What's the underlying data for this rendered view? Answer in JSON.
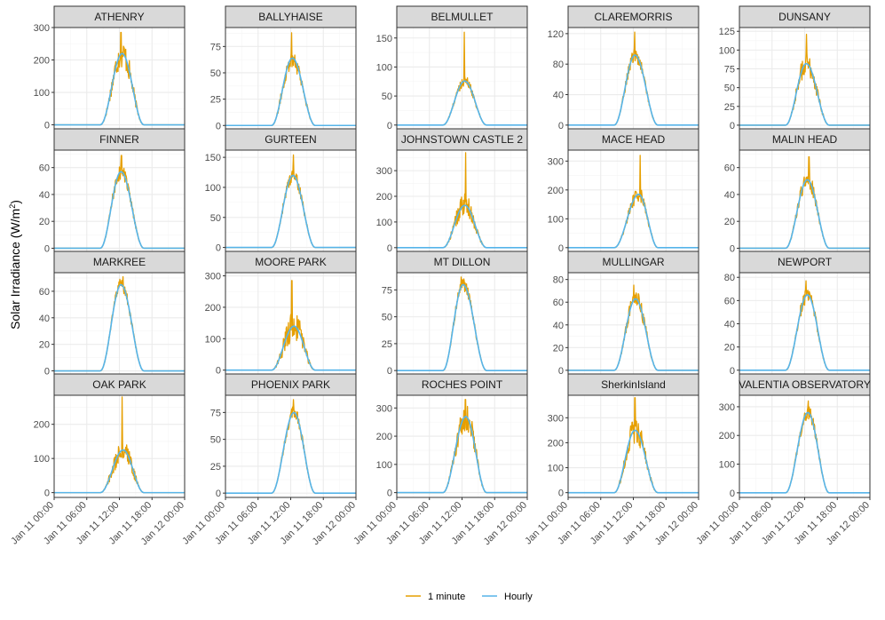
{
  "colors": {
    "minute": "#E69F00",
    "hourly": "#56B4E9",
    "strip_fill": "#D9D9D9",
    "grid_major": "#EBEBEB",
    "grid_minor": "#F5F5F5",
    "panel_border": "#333333"
  },
  "chart_data": {
    "type": "line",
    "ylabel": "Solar Irradiance (W/m²)",
    "ylabel_main": "Solar Irradiance (W/m",
    "ylabel_sup": "2",
    "ylabel_close": ")",
    "x_domain_hours": [
      0,
      24
    ],
    "x_ticks": [
      {
        "hour": 0,
        "label": "Jan 11 00:00"
      },
      {
        "hour": 6,
        "label": "Jan 11 06:00"
      },
      {
        "hour": 12,
        "label": "Jan 11 12:00"
      },
      {
        "hour": 18,
        "label": "Jan 11 18:00"
      },
      {
        "hour": 24,
        "label": "Jan 12 00:00"
      }
    ],
    "legend": [
      {
        "key": "minute",
        "label": "1 minute"
      },
      {
        "key": "hourly",
        "label": "Hourly"
      }
    ],
    "sunrise_hour": 8.5,
    "sunset_hour": 16.5,
    "panels": [
      {
        "name": "ATHENRY",
        "ylim": [
          -15,
          300
        ],
        "yticks": [
          0,
          100,
          200,
          300
        ],
        "peak_hour": 12.5,
        "hourly_peak": 220,
        "minute_peak": 285,
        "noise": 45
      },
      {
        "name": "BALLYHAISE",
        "ylim": [
          -4,
          93
        ],
        "yticks": [
          0,
          25,
          50,
          75
        ],
        "peak_hour": 12.3,
        "hourly_peak": 64,
        "minute_peak": 88,
        "noise": 10
      },
      {
        "name": "BELMULLET",
        "ylim": [
          -8,
          168
        ],
        "yticks": [
          0,
          50,
          100,
          150
        ],
        "peak_hour": 12.5,
        "hourly_peak": 76,
        "minute_peak": 160,
        "noise": 9
      },
      {
        "name": "CLAREMORRIS",
        "ylim": [
          -6,
          128
        ],
        "yticks": [
          0,
          40,
          80,
          120
        ],
        "peak_hour": 12.3,
        "hourly_peak": 92,
        "minute_peak": 122,
        "noise": 10
      },
      {
        "name": "DUNSANY",
        "ylim": [
          -6,
          130
        ],
        "yticks": [
          0,
          25,
          50,
          75,
          100,
          125
        ],
        "peak_hour": 12.3,
        "hourly_peak": 82,
        "minute_peak": 121,
        "noise": 15
      },
      {
        "name": "FINNER",
        "ylim": [
          -3,
          73
        ],
        "yticks": [
          0,
          20,
          40,
          60
        ],
        "peak_hour": 12.3,
        "hourly_peak": 57,
        "minute_peak": 69,
        "noise": 6
      },
      {
        "name": "GURTEEN",
        "ylim": [
          -8,
          162
        ],
        "yticks": [
          0,
          50,
          100,
          150
        ],
        "peak_hour": 12.4,
        "hourly_peak": 120,
        "minute_peak": 154,
        "noise": 12
      },
      {
        "name": "JOHNSTOWN CASTLE 2",
        "ylim": [
          -18,
          380
        ],
        "yticks": [
          0,
          100,
          200,
          300
        ],
        "peak_hour": 12.5,
        "hourly_peak": 165,
        "minute_peak": 370,
        "noise": 45
      },
      {
        "name": "MACE HEAD",
        "ylim": [
          -16,
          338
        ],
        "yticks": [
          0,
          100,
          200,
          300
        ],
        "peak_hour": 13.0,
        "hourly_peak": 185,
        "minute_peak": 320,
        "noise": 25
      },
      {
        "name": "MALIN HEAD",
        "ylim": [
          -3,
          73
        ],
        "yticks": [
          0,
          20,
          40,
          60
        ],
        "peak_hour": 12.5,
        "hourly_peak": 51,
        "minute_peak": 68,
        "noise": 6
      },
      {
        "name": "MARKREE",
        "ylim": [
          -3,
          74
        ],
        "yticks": [
          0,
          20,
          40,
          60
        ],
        "peak_hour": 12.3,
        "hourly_peak": 65,
        "minute_peak": 71,
        "noise": 5
      },
      {
        "name": "MOORE PARK",
        "ylim": [
          -15,
          310
        ],
        "yticks": [
          0,
          100,
          200,
          300
        ],
        "peak_hour": 12.6,
        "hourly_peak": 140,
        "minute_peak": 285,
        "noise": 50
      },
      {
        "name": "MT DILLON",
        "ylim": [
          -4,
          91
        ],
        "yticks": [
          0,
          25,
          50,
          75
        ],
        "peak_hour": 12.2,
        "hourly_peak": 80,
        "minute_peak": 87,
        "noise": 6
      },
      {
        "name": "MULLINGAR",
        "ylim": [
          -4,
          86
        ],
        "yticks": [
          0,
          20,
          40,
          60,
          80
        ],
        "peak_hour": 12.4,
        "hourly_peak": 63,
        "minute_peak": 75,
        "noise": 8
      },
      {
        "name": "NEWPORT",
        "ylim": [
          -4,
          84
        ],
        "yticks": [
          0,
          20,
          40,
          60,
          80
        ],
        "peak_hour": 12.5,
        "hourly_peak": 65,
        "minute_peak": 77,
        "noise": 7
      },
      {
        "name": "OAK PARK",
        "ylim": [
          -14,
          285
        ],
        "yticks": [
          0,
          100,
          200
        ],
        "peak_hour": 12.7,
        "hourly_peak": 125,
        "minute_peak": 280,
        "noise": 35
      },
      {
        "name": "PHOENIX PARK",
        "ylim": [
          -4,
          91
        ],
        "yticks": [
          0,
          25,
          50,
          75
        ],
        "peak_hour": 12.6,
        "hourly_peak": 75,
        "minute_peak": 87,
        "noise": 6
      },
      {
        "name": "ROCHES POINT",
        "ylim": [
          -17,
          345
        ],
        "yticks": [
          0,
          100,
          200,
          300
        ],
        "peak_hour": 12.7,
        "hourly_peak": 270,
        "minute_peak": 330,
        "noise": 55
      },
      {
        "name": "SherkinIsland",
        "ylim": [
          -19,
          390
        ],
        "yticks": [
          0,
          100,
          200,
          300
        ],
        "peak_hour": 12.3,
        "hourly_peak": 250,
        "minute_peak": 380,
        "noise": 55
      },
      {
        "name": "VALENTIA OBSERVATORY",
        "ylim": [
          -16,
          340
        ],
        "yticks": [
          0,
          100,
          200,
          300
        ],
        "peak_hour": 12.6,
        "hourly_peak": 280,
        "minute_peak": 320,
        "noise": 25
      }
    ]
  }
}
